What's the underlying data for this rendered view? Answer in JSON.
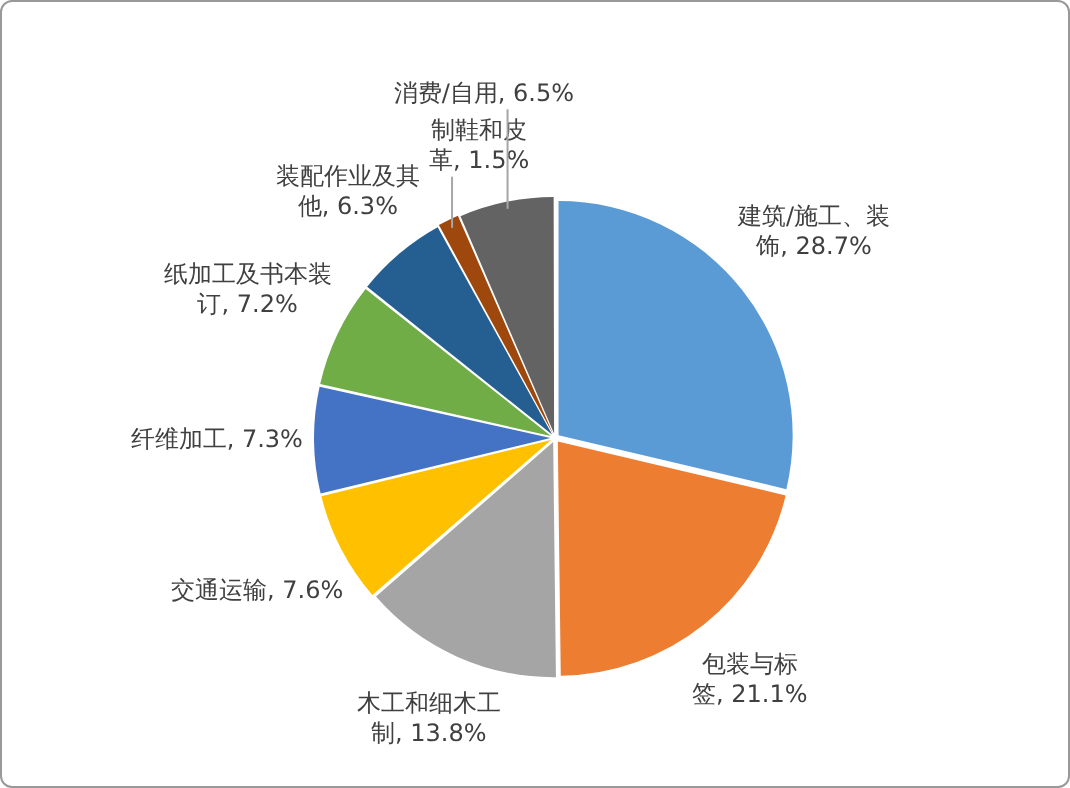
{
  "chart_data": {
    "type": "pie",
    "categories": [
      "建筑/施工、装饰",
      "包装与标签",
      "木工和细木工制",
      "交通运输",
      "纤维加工",
      "纸加工及书本装订",
      "装配作业及其他",
      "制鞋和皮革",
      "消费/自用"
    ],
    "values": [
      28.7,
      21.1,
      13.8,
      7.6,
      7.3,
      7.2,
      6.3,
      1.5,
      6.5
    ],
    "value_labels": [
      "28.7%",
      "21.1%",
      "13.8%",
      "7.6%",
      "7.3%",
      "7.2%",
      "6.3%",
      "1.5%",
      "6.5%"
    ],
    "colors": [
      "#5b9bd5",
      "#ed7d31",
      "#a5a5a5",
      "#ffc000",
      "#4472c4",
      "#70ad47",
      "#255e91",
      "#9e480e",
      "#636363"
    ],
    "legend": false
  }
}
